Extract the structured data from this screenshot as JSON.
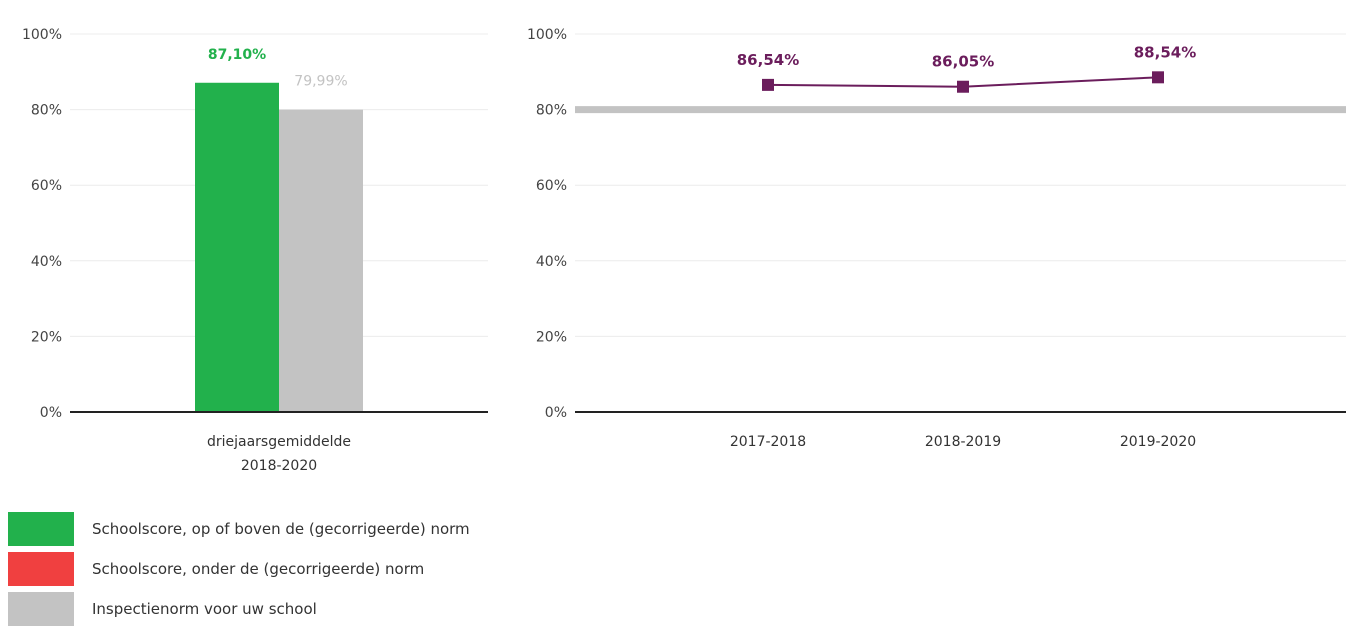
{
  "chart_data": [
    {
      "type": "bar",
      "categories": [
        "driejaarsgemiddelde 2018-2020"
      ],
      "category_lines": [
        "driejaarsgemiddelde",
        "2018-2020"
      ],
      "series": [
        {
          "values": [
            87.1
          ],
          "labels": [
            "87,10%"
          ],
          "color": "#22b14c"
        },
        {
          "values": [
            79.99
          ],
          "labels": [
            "79,99%"
          ],
          "color": "#c3c3c3"
        }
      ],
      "yticks": [
        "0%",
        "20%",
        "40%",
        "60%",
        "80%",
        "100%"
      ],
      "ylim": [
        0,
        100
      ],
      "grid": true
    },
    {
      "type": "line",
      "x": [
        "2017-2018",
        "2018-2019",
        "2019-2020"
      ],
      "series": [
        {
          "values": [
            86.54,
            86.05,
            88.54
          ],
          "labels": [
            "86,54%",
            "86,05%",
            "88,54%"
          ],
          "color": "#6b1d5c",
          "marker": "square"
        }
      ],
      "reference_line": {
        "value": 80,
        "color": "#c3c3c3"
      },
      "yticks": [
        "0%",
        "20%",
        "40%",
        "60%",
        "80%",
        "100%"
      ],
      "ylim": [
        0,
        100
      ],
      "grid": true
    }
  ],
  "legend": [
    {
      "label": "Schoolscore, op of boven de (gecorrigeerde) norm",
      "color": "#22b14c"
    },
    {
      "label": "Schoolscore, onder de (gecorrigeerde) norm",
      "color": "#f04040"
    },
    {
      "label": "Inspectienorm voor uw school",
      "color": "#c3c3c3"
    }
  ]
}
